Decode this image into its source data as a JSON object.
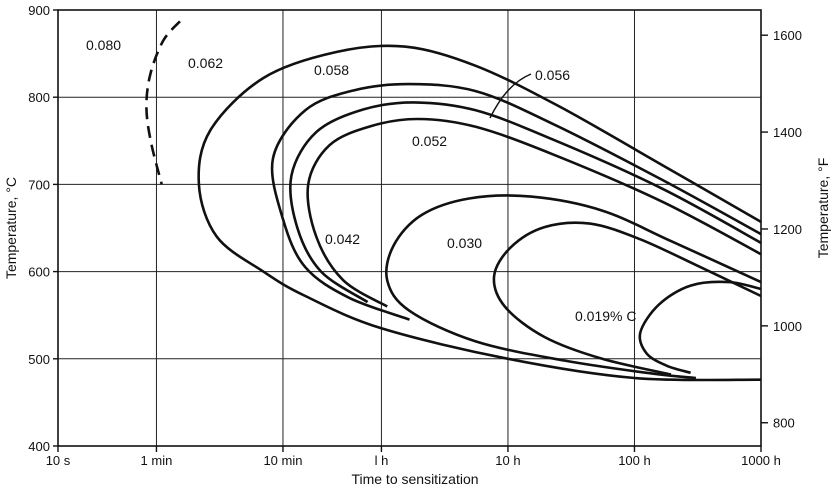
{
  "chart_data": {
    "type": "line",
    "xlabel": "Time to sensitization",
    "ylabel": "Temperature, °C",
    "y2label": "Temperature, °F",
    "x_scale": "log",
    "x_ticks": [
      {
        "seconds": 10,
        "label": "10 s"
      },
      {
        "seconds": 60,
        "label": "1 min"
      },
      {
        "seconds": 600,
        "label": "10 min"
      },
      {
        "seconds": 3600,
        "label": "l h"
      },
      {
        "seconds": 36000,
        "label": "10 h"
      },
      {
        "seconds": 360000,
        "label": "100 h"
      },
      {
        "seconds": 3600000,
        "label": "1000 h"
      }
    ],
    "ylim": [
      400,
      900
    ],
    "y_ticks": [
      400,
      500,
      600,
      700,
      800,
      900
    ],
    "y2_ticks": [
      {
        "value": 800,
        "label": "800"
      },
      {
        "value": 1000,
        "label": "1000"
      },
      {
        "value": 1200,
        "label": "1200"
      },
      {
        "value": 1400,
        "label": "1400"
      },
      {
        "value": 1600,
        "label": "1600"
      }
    ],
    "grid": true,
    "series": [
      {
        "name": "0.080",
        "dashed": true,
        "points": [
          [
            92,
            887
          ],
          [
            68,
            865
          ],
          [
            54,
            828
          ],
          [
            50,
            790
          ],
          [
            54,
            750
          ],
          [
            66,
            700
          ]
        ]
      },
      {
        "name": "0.062",
        "points": [
          [
            3600000,
            657
          ],
          [
            600000,
            722
          ],
          [
            90000,
            790
          ],
          [
            20000,
            836
          ],
          [
            5500,
            858
          ],
          [
            1600,
            852
          ],
          [
            420,
            822
          ],
          [
            160,
            762
          ],
          [
            130,
            700
          ],
          [
            180,
            640
          ],
          [
            420,
            600
          ],
          [
            900,
            572
          ],
          [
            3600,
            535
          ],
          [
            36000,
            500
          ],
          [
            360000,
            478
          ],
          [
            3600000,
            476
          ]
        ]
      },
      {
        "name": "0.058",
        "points": [
          [
            3600000,
            643
          ],
          [
            600000,
            705
          ],
          [
            80000,
            770
          ],
          [
            20000,
            807
          ],
          [
            6000,
            815
          ],
          [
            2200,
            808
          ],
          [
            900,
            785
          ],
          [
            500,
            730
          ],
          [
            600,
            660
          ],
          [
            900,
            605
          ],
          [
            2000,
            570
          ],
          [
            6000,
            545
          ]
        ]
      },
      {
        "name": "0.056",
        "points": [
          [
            3600000,
            633
          ],
          [
            600000,
            695
          ],
          [
            80000,
            752
          ],
          [
            20000,
            785
          ],
          [
            6500,
            794
          ],
          [
            2600,
            786
          ],
          [
            1100,
            760
          ],
          [
            700,
            710
          ],
          [
            780,
            650
          ],
          [
            1200,
            600
          ],
          [
            2800,
            565
          ]
        ]
      },
      {
        "name": "0.052",
        "points": [
          [
            3600000,
            620
          ],
          [
            600000,
            680
          ],
          [
            80000,
            735
          ],
          [
            20000,
            766
          ],
          [
            7000,
            775
          ],
          [
            3000,
            767
          ],
          [
            1400,
            745
          ],
          [
            950,
            700
          ],
          [
            1100,
            640
          ],
          [
            1800,
            590
          ],
          [
            4000,
            560
          ]
        ]
      },
      {
        "name": "0.042",
        "points": [
          [
            3600000,
            588
          ],
          [
            700000,
            635
          ],
          [
            200000,
            670
          ],
          [
            55000,
            686
          ],
          [
            18000,
            684
          ],
          [
            7500,
            665
          ],
          [
            4500,
            630
          ],
          [
            4000,
            590
          ],
          [
            6000,
            555
          ],
          [
            20000,
            520
          ],
          [
            100000,
            498
          ],
          [
            500000,
            483
          ],
          [
            1100000,
            478
          ]
        ]
      },
      {
        "name": "0.030",
        "points": [
          [
            3600000,
            572
          ],
          [
            1200000,
            605
          ],
          [
            400000,
            637
          ],
          [
            160000,
            655
          ],
          [
            70000,
            651
          ],
          [
            38000,
            628
          ],
          [
            28000,
            595
          ],
          [
            34000,
            560
          ],
          [
            70000,
            525
          ],
          [
            200000,
            500
          ],
          [
            700000,
            482
          ]
        ]
      },
      {
        "name": "0.019% C",
        "points": [
          [
            3600000,
            580
          ],
          [
            2000000,
            588
          ],
          [
            1000000,
            584
          ],
          [
            560000,
            562
          ],
          [
            400000,
            530
          ],
          [
            450000,
            506
          ],
          [
            650000,
            492
          ],
          [
            1000000,
            484
          ]
        ]
      }
    ],
    "annotations": [
      {
        "text": "0.080",
        "series": "0.080"
      },
      {
        "text": "0.062",
        "series": "0.062"
      },
      {
        "text": "0.058",
        "series": "0.058"
      },
      {
        "text": "0.056",
        "series": "0.056"
      },
      {
        "text": "0.052",
        "series": "0.052"
      },
      {
        "text": "0.042",
        "series": "0.042"
      },
      {
        "text": "0.030",
        "series": "0.030"
      },
      {
        "text": "0.019% C",
        "series": "0.019% C"
      }
    ]
  }
}
